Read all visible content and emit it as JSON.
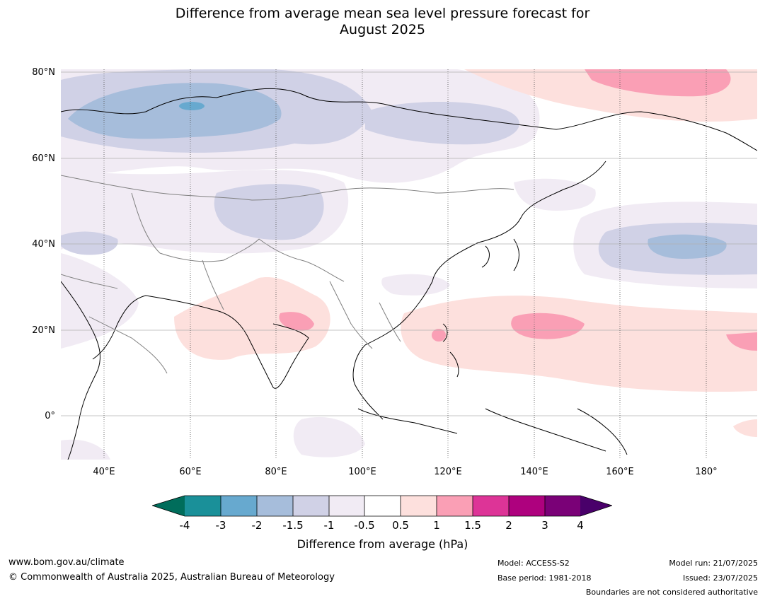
{
  "title": {
    "line1": "Difference from average mean sea level pressure forecast for",
    "line2": "August 2025"
  },
  "axes": {
    "lat_labels": [
      "80°N",
      "60°N",
      "40°N",
      "20°N",
      "0°"
    ],
    "lon_labels": [
      "40°E",
      "60°E",
      "80°E",
      "100°E",
      "120°E",
      "140°E",
      "160°E",
      "180°"
    ]
  },
  "colorbar": {
    "ticks": [
      "-4",
      "-3",
      "-2",
      "-1.5",
      "-1",
      "-0.5",
      "0.5",
      "1",
      "1.5",
      "2",
      "3",
      "4"
    ],
    "colors": [
      "#006d5b",
      "#1a9099",
      "#67a9cf",
      "#a6bddb",
      "#d0d1e6",
      "#f1ebf4",
      "#ffffff",
      "#fde0dd",
      "#fa9fb5",
      "#dd3497",
      "#ae017e",
      "#7a0177",
      "#49006a"
    ],
    "label": "Difference from average (hPa)"
  },
  "footer": {
    "website": "www.bom.gov.au/climate",
    "copyright": "© Commonwealth of Australia 2025, Australian Bureau of Meteorology",
    "model": "Model: ACCESS-S2",
    "base_period": "Base period: 1981-2018",
    "model_run": "Model run: 21/07/2025",
    "issued": "Issued: 23/07/2025",
    "disclaimer": "Boundaries are not considered authoritative"
  }
}
